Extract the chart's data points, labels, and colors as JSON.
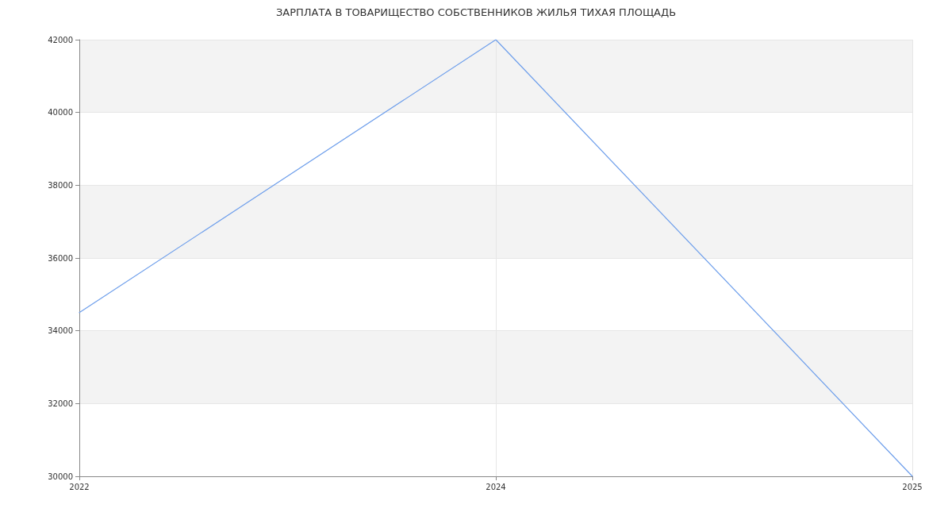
{
  "chart_data": {
    "type": "line",
    "title": "ЗАРПЛАТА В ТОВАРИЩЕСТВО СОБСТВЕННИКОВ ЖИЛЬЯ ТИХАЯ ПЛОЩАДЬ",
    "categories": [
      "2022",
      "2024",
      "2025"
    ],
    "series": [
      {
        "color": "#6d9eeb",
        "values": [
          34500,
          42000,
          30000
        ]
      }
    ],
    "ylim": [
      30000,
      42000
    ],
    "yticks": [
      30000,
      32000,
      34000,
      36000,
      38000,
      40000,
      42000
    ],
    "grid": true,
    "marker": "none",
    "line_style": "solid"
  }
}
